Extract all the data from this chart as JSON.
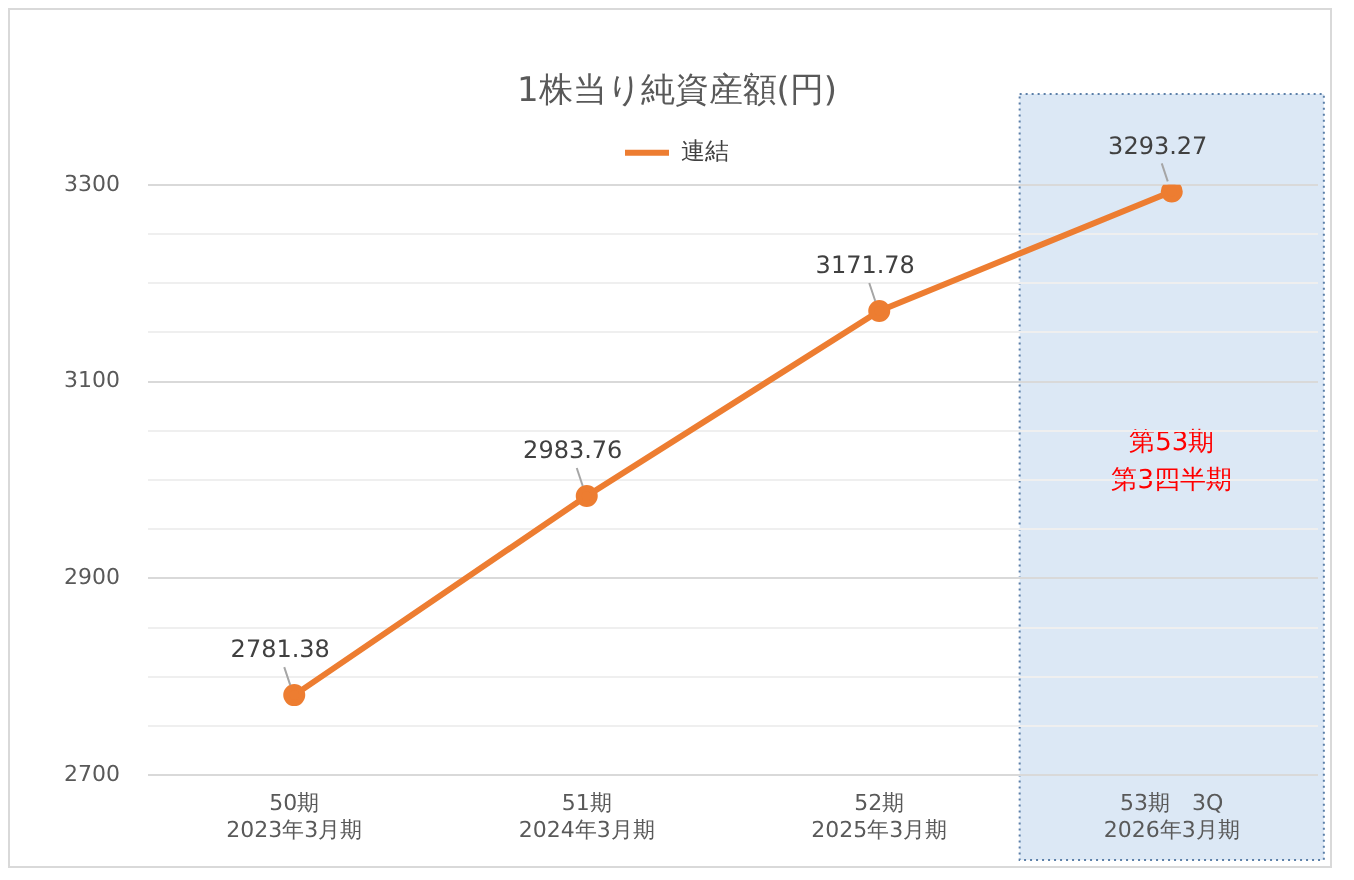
{
  "chart_data": {
    "type": "line",
    "title": "1株当り純資産額(円)",
    "categories": [
      "50期\n2023年3月期",
      "51期\n2024年3月期",
      "52期\n2025年3月期",
      "53期　3Q\n2026年3月期"
    ],
    "series": [
      {
        "name": "連結",
        "color": "#ed7d31",
        "values": [
          2781.38,
          2983.76,
          3171.78,
          3293.27
        ]
      }
    ],
    "ylim": [
      2700,
      3300
    ],
    "yticks": [
      2700,
      {
        "value": 2750,
        "label": null
      },
      {
        "value": 2800,
        "label": null
      },
      {
        "value": 2850,
        "label": null
      },
      2900,
      {
        "value": 2950,
        "label": null
      },
      {
        "value": 3000,
        "label": null
      },
      {
        "value": 3050,
        "label": null
      },
      3100,
      {
        "value": 3150,
        "label": null
      },
      {
        "value": 3200,
        "label": null
      },
      {
        "value": 3250,
        "label": null
      },
      3300
    ],
    "bands": [
      {
        "axis": "x",
        "from": "53期　3Q\n2026年3月期",
        "to": "53期　3Q\n2026年3月期",
        "label": "第53期第3四半期",
        "color": "#d6e4f3"
      }
    ],
    "grid": "y",
    "legend": "top",
    "marker": "circle",
    "line_style": "solid",
    "data_labels": true
  }
}
